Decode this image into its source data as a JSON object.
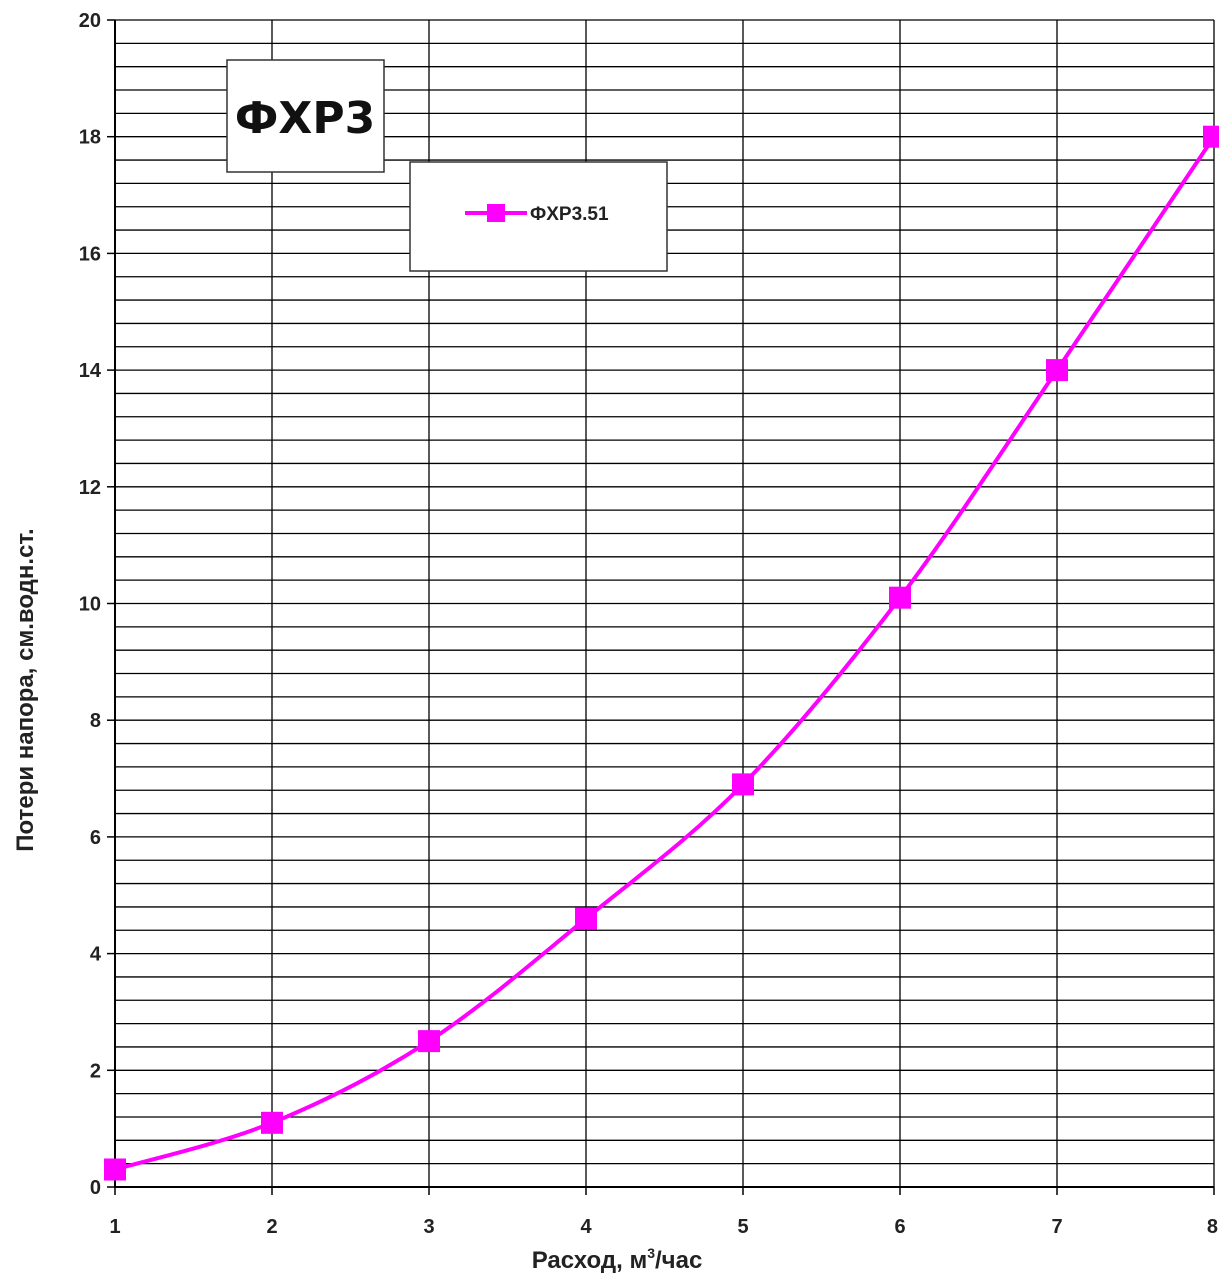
{
  "chart_data": {
    "type": "line",
    "title": "ФХР3",
    "xlabel_main": "Расход, м",
    "xlabel_sup": "3",
    "xlabel_tail": "/час",
    "ylabel": "Потери напора, см.водн.ст.",
    "x": [
      1,
      2,
      3,
      4,
      5,
      6,
      7,
      8
    ],
    "series": [
      {
        "name": "ФХР3.51",
        "values": [
          0.3,
          1.1,
          2.5,
          4.6,
          6.9,
          10.1,
          14.0,
          18.0
        ]
      }
    ],
    "xlim": [
      1,
      8
    ],
    "ylim": [
      0,
      20
    ],
    "x_ticks": [
      "1",
      "2",
      "3",
      "4",
      "5",
      "6",
      "7",
      "8"
    ],
    "y_ticks": [
      "0",
      "2",
      "4",
      "6",
      "8",
      "10",
      "12",
      "14",
      "16",
      "18",
      "20"
    ],
    "minor_y_step": 0.4,
    "grid": true,
    "legend": "top-center",
    "line_color": "#ff00ff",
    "smooth": true
  }
}
